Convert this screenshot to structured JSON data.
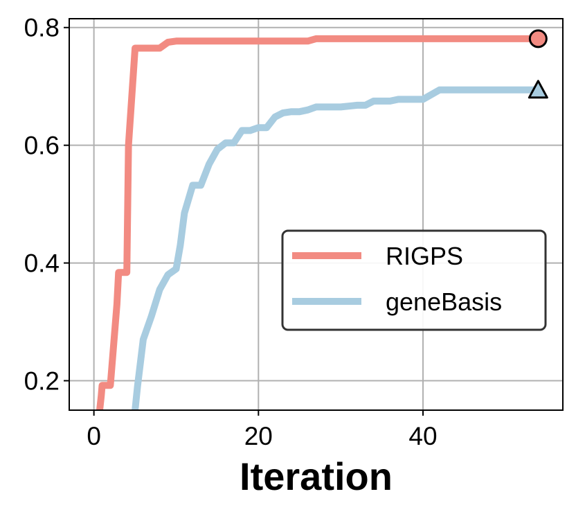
{
  "chart_data": {
    "type": "line",
    "title": "",
    "xlabel": "Iteration",
    "ylabel": "",
    "xlim": [
      -3,
      57
    ],
    "ylim": [
      0.15,
      0.815
    ],
    "xticks": [
      0,
      20,
      40
    ],
    "yticks": [
      0.2,
      0.4,
      0.6,
      0.8
    ],
    "xtick_labels": [
      "0",
      "20",
      "40"
    ],
    "ytick_labels": [
      "0.2",
      "0.4",
      "0.6",
      "0.8"
    ],
    "grid": true,
    "legend_position": "center-right",
    "series": [
      {
        "name": "RIGPS",
        "color": "#f28b82",
        "end_marker": "circle",
        "x": [
          0.7,
          0.9,
          1.0,
          2.0,
          2.8,
          3.0,
          4.0,
          4.2,
          5.0,
          8.0,
          9.0,
          10,
          26,
          27,
          54
        ],
        "y": [
          0.15,
          0.175,
          0.192,
          0.192,
          0.33,
          0.384,
          0.384,
          0.6,
          0.765,
          0.765,
          0.775,
          0.777,
          0.777,
          0.781,
          0.781
        ]
      },
      {
        "name": "geneBasis",
        "color": "#a8cce0",
        "end_marker": "triangle",
        "x": [
          5.0,
          5.3,
          6.0,
          7.0,
          8.0,
          9.0,
          10.0,
          10.5,
          11.0,
          12.0,
          13.0,
          14.0,
          15.0,
          16.0,
          17.0,
          18.0,
          19.0,
          20.0,
          21.0,
          22.0,
          23.0,
          24.0,
          25.0,
          26.0,
          27.0,
          28.0,
          30.0,
          32.0,
          33.0,
          34.0,
          36.0,
          37.0,
          40.0,
          42.0,
          54.0
        ],
        "y": [
          0.15,
          0.19,
          0.27,
          0.31,
          0.355,
          0.38,
          0.39,
          0.43,
          0.485,
          0.532,
          0.532,
          0.568,
          0.593,
          0.604,
          0.604,
          0.625,
          0.625,
          0.63,
          0.63,
          0.648,
          0.655,
          0.657,
          0.657,
          0.66,
          0.665,
          0.665,
          0.665,
          0.668,
          0.668,
          0.675,
          0.675,
          0.678,
          0.678,
          0.694,
          0.694
        ]
      }
    ]
  }
}
